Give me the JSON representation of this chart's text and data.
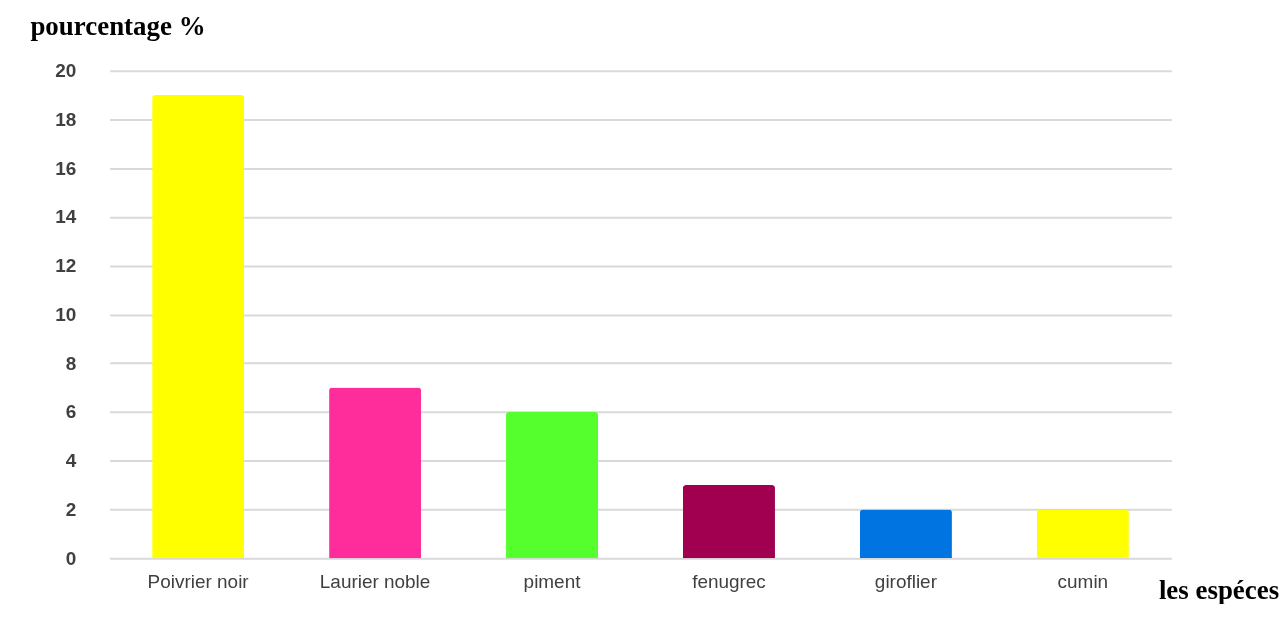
{
  "chart_data": {
    "type": "bar",
    "xlabel": "les espéces",
    "ylabel": "pourcentage %",
    "categories": [
      "Poivrier noir",
      "Laurier noble",
      "piment",
      "fenugrec",
      "giroflier",
      "cumin"
    ],
    "values": [
      19,
      7,
      6,
      3,
      2,
      2
    ],
    "colors": [
      "#ffff00",
      "#ff2d9b",
      "#55ff2e",
      "#a0004f",
      "#0074e0",
      "#ffff00"
    ],
    "ylim": [
      0,
      20
    ],
    "yticks": [
      0,
      2,
      4,
      6,
      8,
      10,
      12,
      14,
      16,
      18,
      20
    ],
    "grid": "y"
  }
}
